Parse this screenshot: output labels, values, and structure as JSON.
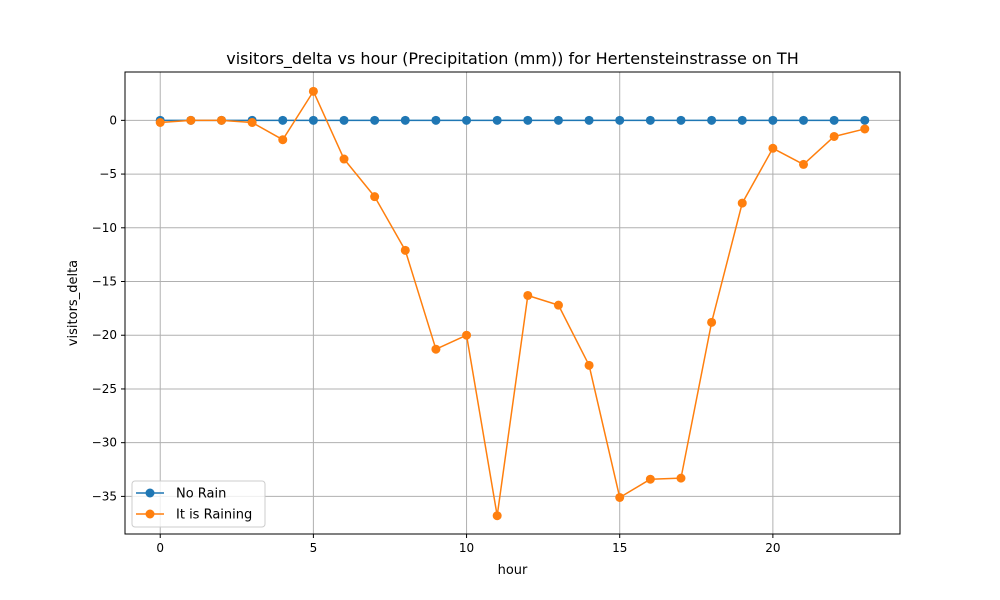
{
  "chart_data": {
    "type": "line",
    "title": "visitors_delta vs hour (Precipitation (mm)) for Hertensteinstrasse on TH",
    "xlabel": "hour",
    "ylabel": "visitors_delta",
    "x": [
      0,
      1,
      2,
      3,
      4,
      5,
      6,
      7,
      8,
      9,
      10,
      11,
      12,
      13,
      14,
      15,
      16,
      17,
      18,
      19,
      20,
      21,
      22,
      23
    ],
    "xlim": [
      -1.15,
      24.15
    ],
    "ylim": [
      -38.5,
      4.5
    ],
    "xticks": [
      0,
      5,
      10,
      15,
      20
    ],
    "yticks": [
      0,
      -5,
      -10,
      -15,
      -20,
      -25,
      -30,
      -35
    ],
    "xtick_labels": [
      "0",
      "5",
      "10",
      "15",
      "20"
    ],
    "ytick_labels": [
      "0",
      "−5",
      "−10",
      "−15",
      "−20",
      "−25",
      "−30",
      "−35"
    ],
    "grid": true,
    "legend_position": "lower-left",
    "series": [
      {
        "name": "No Rain",
        "color": "#1f77b4",
        "values": [
          0,
          0,
          0,
          0,
          0,
          0,
          0,
          0,
          0,
          0,
          0,
          0,
          0,
          0,
          0,
          0,
          0,
          0,
          0,
          0,
          0,
          0,
          0,
          0
        ]
      },
      {
        "name": "It is Raining",
        "color": "#ff7f0e",
        "values": [
          -0.2,
          0,
          0,
          -0.2,
          -1.8,
          2.7,
          -3.6,
          -7.1,
          -12.1,
          -21.3,
          -20.0,
          -36.8,
          -16.3,
          -17.2,
          -22.8,
          -35.1,
          -33.4,
          -33.3,
          -18.8,
          -7.7,
          -2.6,
          -4.1,
          -1.5,
          -0.8
        ]
      }
    ]
  }
}
